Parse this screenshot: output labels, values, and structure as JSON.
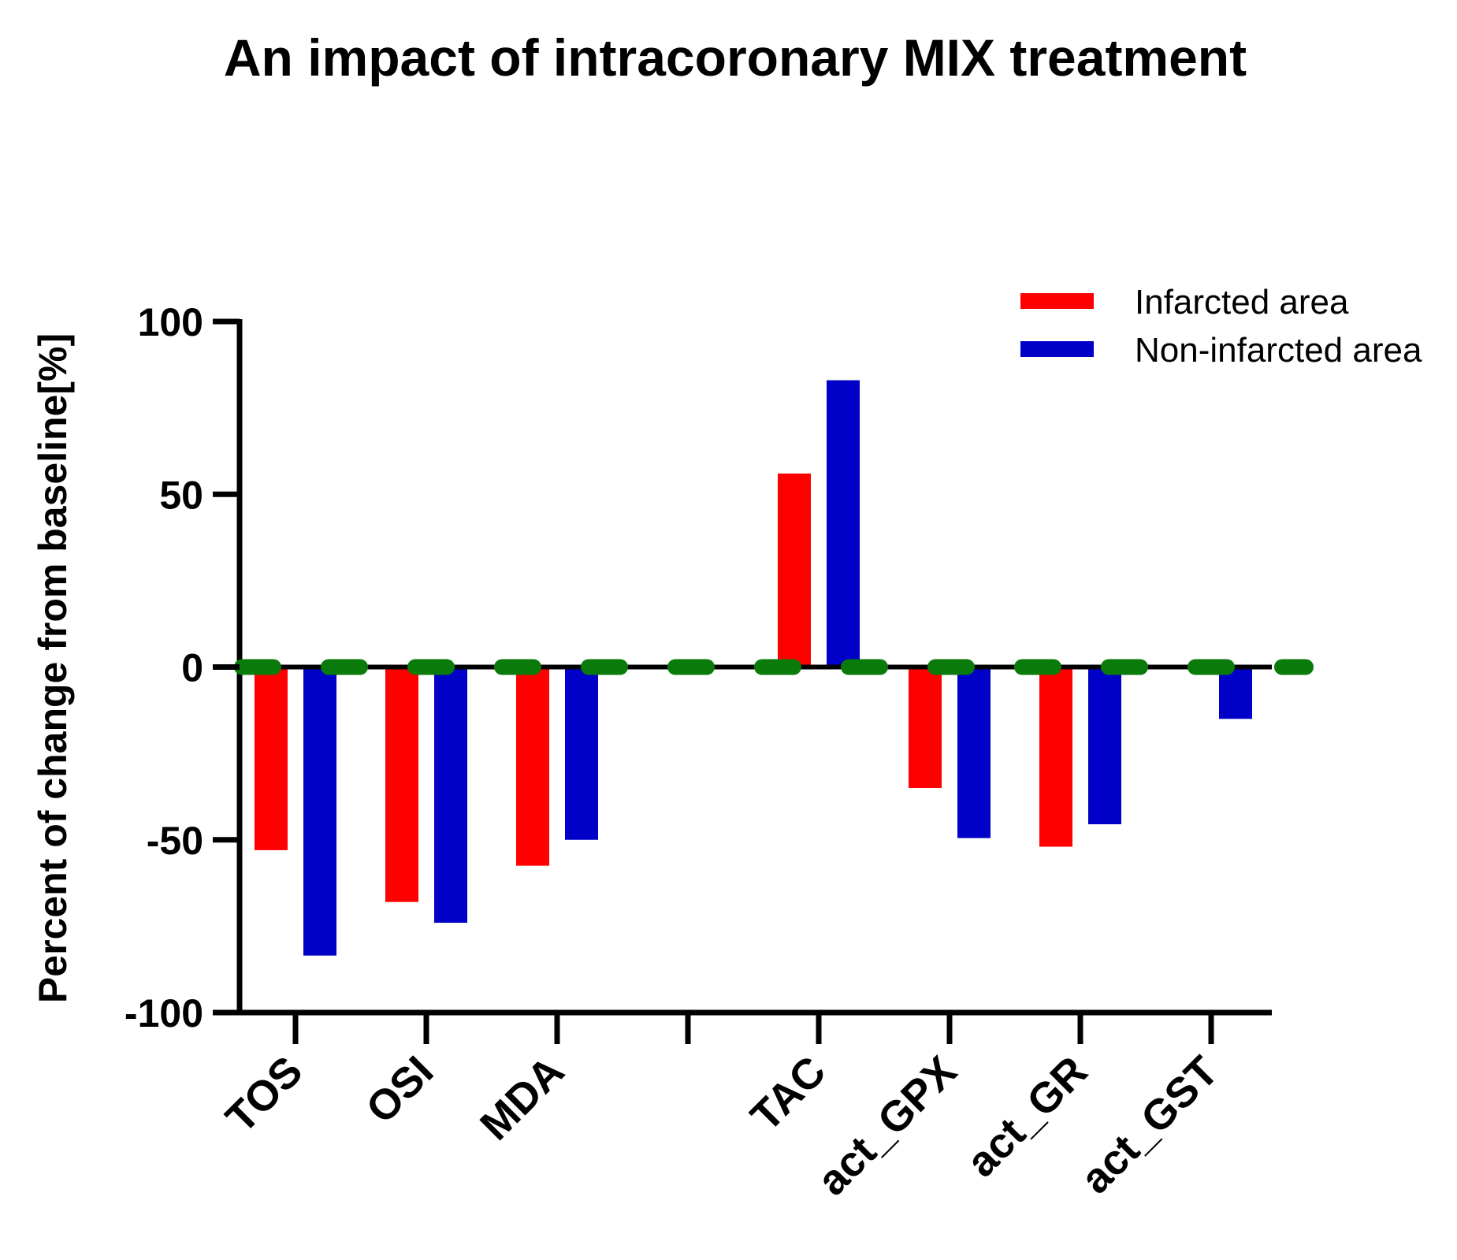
{
  "chart_data": {
    "type": "bar",
    "title": "An impact of intracoronary MIX treatment",
    "xlabel": "",
    "ylabel": "Percent of change from baseline[%]",
    "ylim": [
      -100,
      100
    ],
    "yticks": [
      "100",
      "50",
      "0",
      "-50",
      "-100"
    ],
    "ytick_values": [
      100,
      50,
      0,
      -50,
      -100
    ],
    "categories": [
      "TOS",
      "OSI",
      "MDA",
      "",
      "TAC",
      "act_GPX",
      "act_GR",
      "act_GST"
    ],
    "series": [
      {
        "name": "Infarcted area",
        "color": "#ff0000",
        "values": [
          -53,
          -68,
          -57.5,
          0,
          56,
          -35,
          -52,
          0
        ]
      },
      {
        "name": "Non-infarcted area",
        "color": "#0000c8",
        "values": [
          -83.5,
          -74,
          -50,
          0,
          83,
          -49.5,
          -45.5,
          -15
        ]
      }
    ],
    "baseline": {
      "value": 0,
      "color": "#0a7a0a",
      "style": "dashed"
    },
    "grid": false,
    "legend": "top-right"
  }
}
